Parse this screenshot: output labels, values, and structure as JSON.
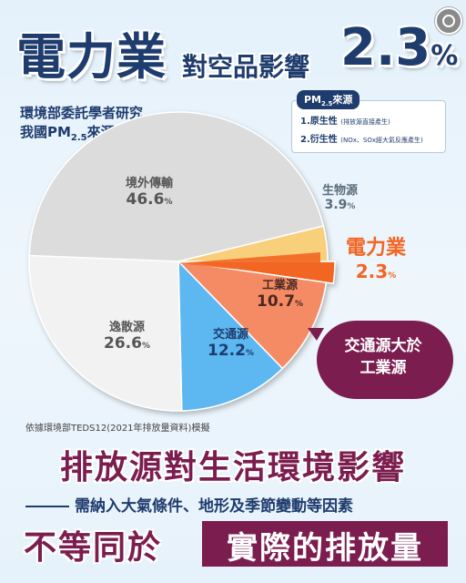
{
  "header": {
    "main": "電力業",
    "sub": "對空品影響",
    "pct_num": "2.3",
    "pct_sign": "%"
  },
  "description": {
    "line1": "環境部委託學者研究",
    "line2_prefix": "我國PM",
    "line2_sub": "2.5",
    "line2_suffix": "來源貢獻"
  },
  "source_box": {
    "title_prefix": "PM",
    "title_sub": "2.5",
    "title_suffix": "來源",
    "item1": "1.原生性",
    "item1_note": "(排放源直接產生)",
    "item2": "2.衍生性",
    "item2_note": "(NOx、SOx經大氣反應產生)"
  },
  "chart_data": {
    "type": "pie",
    "unit": "%",
    "slices": [
      {
        "label": "電力業",
        "value": 2.3,
        "color": "#f26522"
      },
      {
        "label": "工業源",
        "value": 10.7,
        "color": "#f58b65"
      },
      {
        "label": "交通源",
        "value": 12.2,
        "color": "#5db7f0"
      },
      {
        "label": "逸散源",
        "value": 26.6,
        "color": "#f2f2f2"
      },
      {
        "label": "境外傳輸",
        "value": 46.6,
        "color": "#dcdcdc"
      },
      {
        "label": "生物源",
        "value": 3.9,
        "color": "#f8cf7a"
      }
    ]
  },
  "labels": {
    "power_name": "電力業",
    "power_value": "2.3",
    "industry_name": "工業源",
    "industry_value": "10.7",
    "traffic_name": "交通源",
    "traffic_value": "12.2",
    "fugitive_name": "逸散源",
    "fugitive_value": "26.6",
    "foreign_name": "境外傳輸",
    "foreign_value": "46.6",
    "bio_name": "生物源",
    "bio_value": "3.9",
    "pct": "%"
  },
  "callout": {
    "line1": "交通源大於",
    "line2": "工業源"
  },
  "footnote": "依據環境部TEDS12(2021年排放量資料)模擬",
  "bottom": {
    "headline": "排放源對生活環境影響",
    "subline": "需納入大氣條件、地形及季節變動等因素",
    "not_equal": "不等同於",
    "boxed": "實際的排放量"
  },
  "colors": {
    "navy": "#1f3c6e",
    "maroon": "#7c1d4f",
    "orange": "#f26522"
  }
}
